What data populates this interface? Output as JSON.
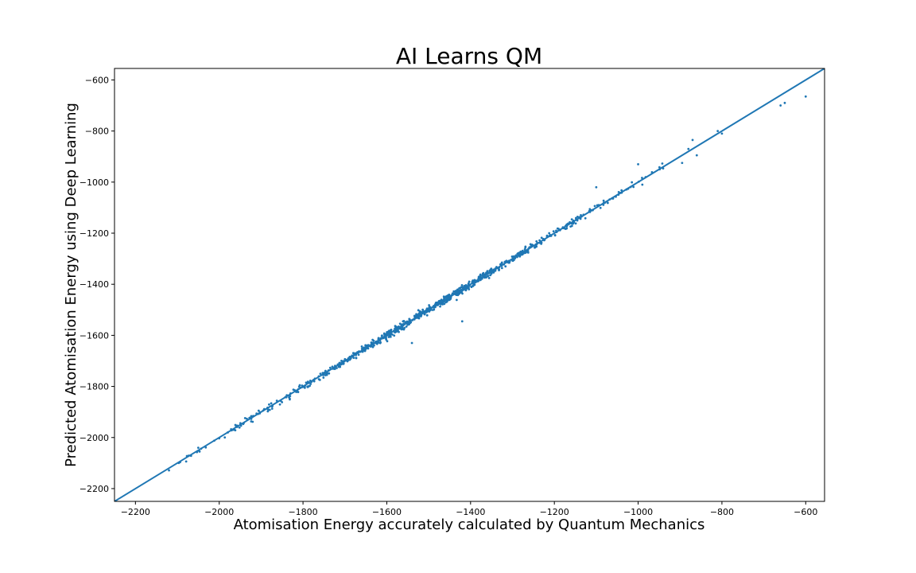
{
  "chart_data": {
    "type": "scatter",
    "title": "AI Learns QM",
    "xlabel": "Atomisation Energy accurately calculated by Quantum Mechanics",
    "ylabel": "Predicted Atomisation Energy using Deep Learning",
    "xlim": [
      -2250,
      -555
    ],
    "ylim": [
      -2250,
      -555
    ],
    "xticks": [
      -2200,
      -2000,
      -1800,
      -1600,
      -1400,
      -1200,
      -1000,
      -800,
      -600
    ],
    "yticks": [
      -2200,
      -2000,
      -1800,
      -1600,
      -1400,
      -1200,
      -1000,
      -800,
      -600
    ],
    "xtick_labels": [
      "−2200",
      "−2000",
      "−1800",
      "−1600",
      "−1400",
      "−1200",
      "−1000",
      "−800",
      "−600"
    ],
    "ytick_labels": [
      "−2200",
      "−2000",
      "−1800",
      "−1600",
      "−1400",
      "−1200",
      "−1000",
      "−800",
      "−600"
    ],
    "grid": false,
    "marker_color": "#1f77b4",
    "reference_line": {
      "type": "identity",
      "from": -2250,
      "to": -555,
      "color": "#1f77b4"
    },
    "clusters": [
      {
        "x": -2060,
        "y": -2065,
        "n": 12
      },
      {
        "x": -1990,
        "y": -1995,
        "n": 6
      },
      {
        "x": -1920,
        "y": -1920,
        "n": 30
      },
      {
        "x": -1860,
        "y": -1865,
        "n": 20
      },
      {
        "x": -1780,
        "y": -1785,
        "n": 45
      },
      {
        "x": -1720,
        "y": -1720,
        "n": 45
      },
      {
        "x": -1650,
        "y": -1650,
        "n": 80
      },
      {
        "x": -1580,
        "y": -1580,
        "n": 100
      },
      {
        "x": -1500,
        "y": -1500,
        "n": 120
      },
      {
        "x": -1430,
        "y": -1430,
        "n": 120
      },
      {
        "x": -1360,
        "y": -1360,
        "n": 100
      },
      {
        "x": -1280,
        "y": -1280,
        "n": 80
      },
      {
        "x": -1200,
        "y": -1200,
        "n": 45
      },
      {
        "x": -1120,
        "y": -1120,
        "n": 30
      },
      {
        "x": -1050,
        "y": -1050,
        "n": 15
      },
      {
        "x": -960,
        "y": -960,
        "n": 8
      }
    ],
    "outliers": [
      {
        "x": -2050,
        "y": -2040
      },
      {
        "x": -1540,
        "y": -1630
      },
      {
        "x": -1420,
        "y": -1545
      },
      {
        "x": -1100,
        "y": -1020
      },
      {
        "x": -1000,
        "y": -930
      },
      {
        "x": -990,
        "y": -1010
      },
      {
        "x": -895,
        "y": -925
      },
      {
        "x": -880,
        "y": -870
      },
      {
        "x": -870,
        "y": -835
      },
      {
        "x": -860,
        "y": -895
      },
      {
        "x": -810,
        "y": -800
      },
      {
        "x": -800,
        "y": -810
      },
      {
        "x": -660,
        "y": -700
      },
      {
        "x": -650,
        "y": -690
      },
      {
        "x": -600,
        "y": -665
      }
    ]
  }
}
